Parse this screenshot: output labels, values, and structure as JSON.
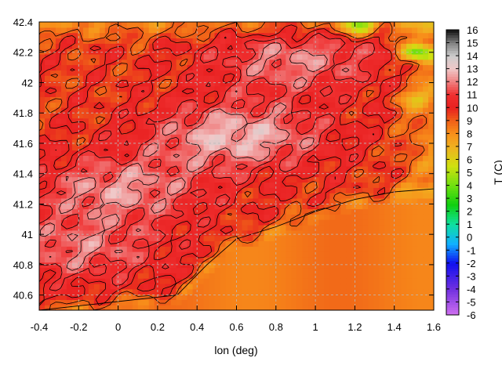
{
  "chart_data": {
    "type": "heatmap",
    "title": "",
    "xlabel": "lon (deg)",
    "ylabel": "",
    "xlim": [
      -0.4,
      1.6
    ],
    "ylim": [
      40.5,
      42.4
    ],
    "x_ticks": [
      "-0.4",
      "-0.2",
      "0",
      "0.2",
      "0.4",
      "0.6",
      "0.8",
      "1",
      "1.2",
      "1.4",
      "1.6"
    ],
    "x_tick_values": [
      -0.4,
      -0.2,
      0,
      0.2,
      0.4,
      0.6,
      0.8,
      1.0,
      1.2,
      1.4,
      1.6
    ],
    "y_ticks": [
      "40.6",
      "40.8",
      "41",
      "41.2",
      "41.4",
      "41.6",
      "41.8",
      "42",
      "42.2",
      "42.4"
    ],
    "y_tick_values": [
      40.6,
      40.8,
      41.0,
      41.2,
      41.4,
      41.6,
      41.8,
      42.0,
      42.2,
      42.4
    ],
    "grid": true,
    "contours": true,
    "colorbar": {
      "label": "T (C)",
      "min": -6,
      "max": 16,
      "ticks": [
        "16",
        "15",
        "14",
        "13",
        "12",
        "11",
        "10",
        "9",
        "8",
        "7",
        "6",
        "5",
        "4",
        "3",
        "2",
        "1",
        "0",
        "-1",
        "-2",
        "-3",
        "-4",
        "-5",
        "-6"
      ],
      "tick_values": [
        16,
        15,
        14,
        13,
        12,
        11,
        10,
        9,
        8,
        7,
        6,
        5,
        4,
        3,
        2,
        1,
        0,
        -1,
        -2,
        -3,
        -4,
        -5,
        -6
      ],
      "palette": [
        [
          -6,
          "#d070f0"
        ],
        [
          -4,
          "#7030e0"
        ],
        [
          -2,
          "#1010f0"
        ],
        [
          -0.5,
          "#10b0ff"
        ],
        [
          1,
          "#10e0a0"
        ],
        [
          2.5,
          "#10d010"
        ],
        [
          4,
          "#70e010"
        ],
        [
          5.5,
          "#d0e010"
        ],
        [
          7,
          "#f0b020"
        ],
        [
          8,
          "#f8901a"
        ],
        [
          9,
          "#f06018"
        ],
        [
          10,
          "#e82020"
        ],
        [
          11,
          "#f03030"
        ],
        [
          12,
          "#f08080"
        ],
        [
          13,
          "#f0c8c8"
        ],
        [
          14,
          "#cccccc"
        ],
        [
          15,
          "#808080"
        ],
        [
          16,
          "#101010"
        ]
      ]
    },
    "regions": {
      "sea_value": 8.5,
      "sea_coast_lat_at_lon": [
        [
          -0.4,
          40.45
        ],
        [
          0.3,
          40.55
        ],
        [
          0.45,
          40.75
        ],
        [
          0.6,
          40.92
        ],
        [
          0.8,
          41.0
        ],
        [
          1.0,
          41.1
        ],
        [
          1.2,
          41.18
        ],
        [
          1.4,
          41.23
        ],
        [
          1.6,
          41.25
        ]
      ],
      "warm_cores": [
        {
          "lon": 0.6,
          "lat": 41.65,
          "value": 12.8
        },
        {
          "lon": 0.0,
          "lat": 41.3,
          "value": 12.2
        },
        {
          "lon": -0.2,
          "lat": 40.9,
          "value": 11.8
        },
        {
          "lon": 0.9,
          "lat": 42.15,
          "value": 12.0
        }
      ],
      "cool_spots": [
        {
          "lon": 1.22,
          "lat": 42.38,
          "value": 4.5
        },
        {
          "lon": 1.52,
          "lat": 42.2,
          "value": 3.5
        },
        {
          "lon": 1.5,
          "lat": 41.9,
          "value": 7.0
        },
        {
          "lon": 0.75,
          "lat": 40.6,
          "value": 9.5
        }
      ]
    }
  }
}
